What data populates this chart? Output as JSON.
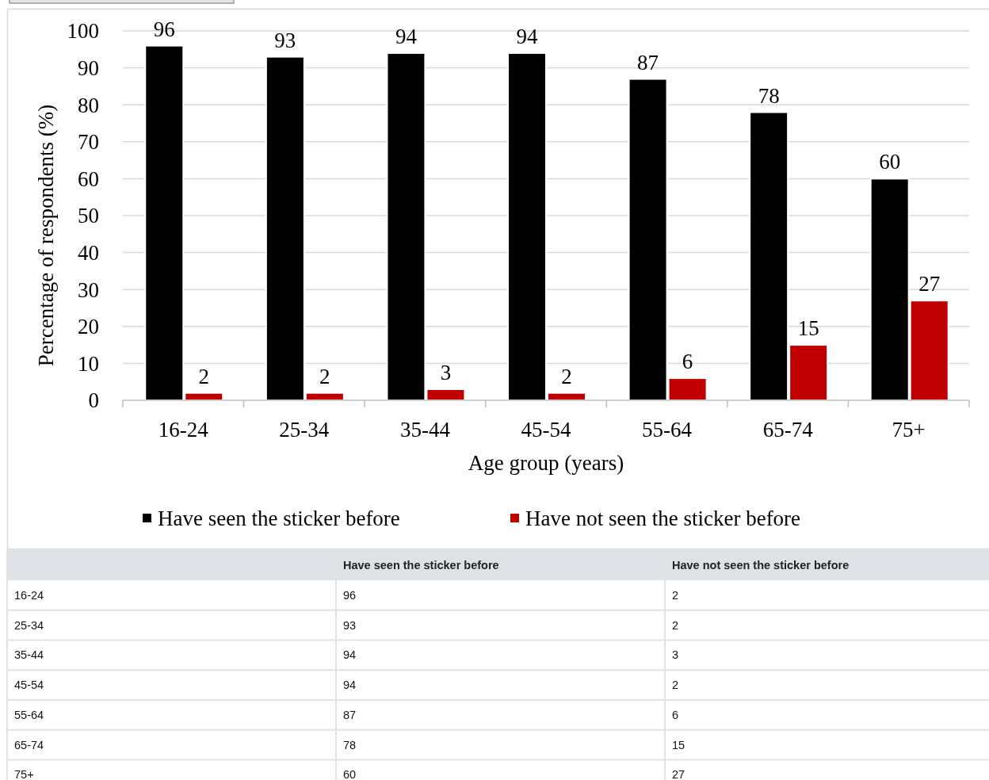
{
  "chart_data": [
    {
      "type": "bar",
      "categories": [
        "16-24",
        "25-34",
        "35-44",
        "45-54",
        "55-64",
        "65-74",
        "75+"
      ],
      "series": [
        {
          "name": "Have seen the sticker before",
          "color": "#000000",
          "values": [
            96,
            93,
            94,
            94,
            87,
            78,
            60
          ]
        },
        {
          "name": "Have not seen the sticker before",
          "color": "#c00000",
          "values": [
            2,
            2,
            3,
            2,
            6,
            15,
            27
          ]
        }
      ],
      "xlabel": "Age group (years)",
      "ylabel": "Percentage of respondents (%)",
      "ylim": [
        0,
        100
      ],
      "yticks": [
        0,
        10,
        20,
        30,
        40,
        50,
        60,
        70,
        80,
        90,
        100
      ],
      "grid": "y",
      "legend": "bottom",
      "data_labels": true
    },
    {
      "type": "other",
      "categories": [
        "16-24",
        "25-34",
        "35-44",
        "45-54",
        "55-64",
        "65-74",
        "75+"
      ],
      "series": [
        {
          "name": "Have seen the sticker before",
          "values": [
            96,
            93,
            94,
            94,
            87,
            78,
            60
          ]
        },
        {
          "name": "Have not seen the sticker before",
          "values": [
            2,
            2,
            3,
            2,
            6,
            15,
            27
          ]
        }
      ],
      "data_labels": true
    }
  ]
}
